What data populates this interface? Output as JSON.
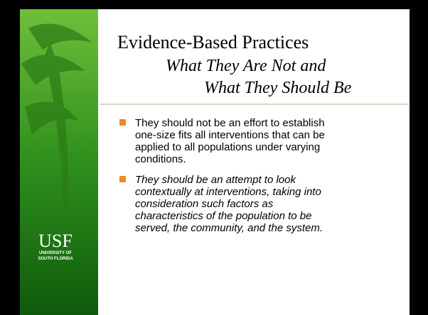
{
  "slide": {
    "title": "Evidence-Based Practices",
    "subtitle": [
      "What They Are Not and",
      "What They Should Be"
    ],
    "bullets": [
      [
        "They should not be an effort to establish",
        "one-size fits all interventions that can be",
        "applied to all populations under varying",
        "conditions."
      ],
      [
        "They should be an attempt to look",
        "contextually at interventions, taking into",
        "consideration such factors as",
        "characteristics of the population to be",
        "served, the community, and the system."
      ]
    ],
    "logo": {
      "mark": "USF",
      "name": [
        "UNIVERSITY OF",
        "SOUTH FLORIDA"
      ]
    }
  }
}
